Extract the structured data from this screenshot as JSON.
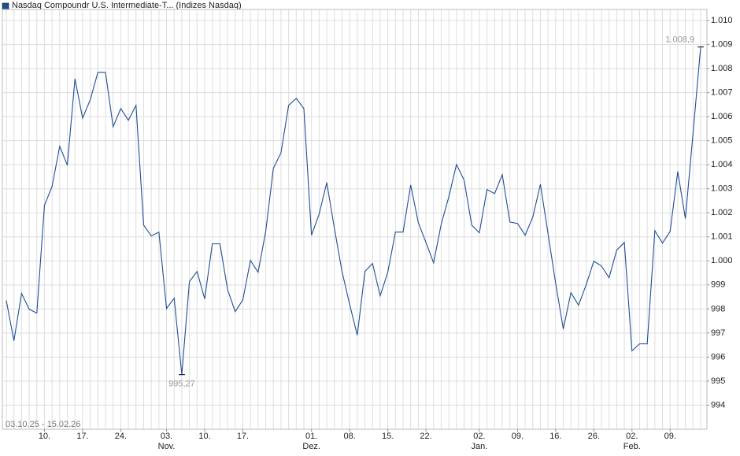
{
  "chart_data": {
    "type": "line",
    "series": [
      {
        "name": "Nasdaq Compoundr U.S. Intermediate-T... (Indizes Nasdaq)",
        "color": "#1f4e96",
        "values": [
          998.35,
          996.68,
          998.65,
          997.99,
          997.83,
          1002.31,
          1003.1,
          1004.77,
          1003.98,
          1007.58,
          1005.94,
          1006.7,
          1007.84,
          1007.84,
          1005.58,
          1006.34,
          1005.85,
          1006.47,
          1001.49,
          1001.04,
          1001.2,
          998.02,
          998.45,
          995.27,
          999.14,
          999.56,
          998.42,
          1000.71,
          1000.71,
          998.81,
          997.89,
          998.38,
          1000.02,
          999.53,
          1001.23,
          1003.85,
          1004.5,
          1006.47,
          1006.76,
          1006.34,
          1001.07,
          1001.95,
          1003.26,
          1001.36,
          999.56,
          998.19,
          996.91,
          999.56,
          999.89,
          998.55,
          999.53,
          1001.2,
          1001.2,
          1003.16,
          1001.59,
          1000.77,
          999.92,
          1001.53,
          1002.67,
          1004.01,
          1003.36,
          1001.49,
          1001.17,
          1002.97,
          1002.8,
          1003.59,
          1001.62,
          1001.56,
          1001.07,
          1001.82,
          1003.19,
          1001.13,
          999.07,
          997.17,
          998.68,
          998.16,
          999.01,
          999.99,
          999.79,
          999.3,
          1000.45,
          1000.77,
          996.26,
          996.55,
          996.55,
          1001.26,
          1000.74,
          1001.23,
          1003.72,
          1001.76,
          1005.29,
          1008.9
        ],
        "value_labels": [
          null,
          null,
          null,
          null,
          null,
          null,
          null,
          null,
          null,
          null,
          null,
          null,
          null,
          null,
          null,
          null,
          null,
          null,
          null,
          null,
          null,
          null,
          null,
          "995,27",
          null,
          null,
          null,
          null,
          null,
          null,
          null,
          null,
          null,
          null,
          null,
          null,
          null,
          null,
          null,
          null,
          null,
          null,
          null,
          null,
          null,
          null,
          null,
          null,
          null,
          null,
          null,
          null,
          null,
          null,
          null,
          null,
          null,
          null,
          null,
          null,
          null,
          null,
          null,
          null,
          null,
          null,
          null,
          null,
          null,
          null,
          null,
          null,
          null,
          null,
          null,
          null,
          null,
          null,
          null,
          null,
          null,
          null,
          null,
          null,
          null,
          null,
          null,
          null,
          null,
          null,
          null,
          "1.008,9"
        ]
      }
    ],
    "categories": [
      null,
      null,
      null,
      null,
      null,
      "10.",
      null,
      null,
      null,
      null,
      "17.",
      null,
      null,
      null,
      null,
      "24.",
      null,
      null,
      null,
      null,
      null,
      "03.",
      null,
      null,
      null,
      null,
      "10.",
      null,
      null,
      null,
      null,
      "17.",
      null,
      null,
      null,
      null,
      null,
      null,
      null,
      null,
      "01.",
      null,
      null,
      null,
      null,
      "08.",
      null,
      null,
      null,
      null,
      "15.",
      null,
      null,
      null,
      null,
      "22.",
      null,
      null,
      null,
      null,
      null,
      null,
      "02.",
      null,
      null,
      null,
      null,
      "09.",
      null,
      null,
      null,
      null,
      "16.",
      null,
      null,
      null,
      null,
      "26.",
      null,
      null,
      null,
      null,
      "02.",
      null,
      null,
      null,
      null,
      "09.",
      null,
      null,
      null,
      null
    ],
    "month_labels": [
      null,
      null,
      null,
      null,
      null,
      null,
      null,
      null,
      null,
      null,
      null,
      null,
      null,
      null,
      null,
      null,
      null,
      null,
      null,
      null,
      null,
      "Nov.",
      null,
      null,
      null,
      null,
      null,
      null,
      null,
      null,
      null,
      null,
      null,
      null,
      null,
      null,
      null,
      null,
      null,
      null,
      "Dez.",
      null,
      null,
      null,
      null,
      null,
      null,
      null,
      null,
      null,
      null,
      null,
      null,
      null,
      null,
      null,
      null,
      null,
      null,
      null,
      null,
      null,
      "Jan.",
      null,
      null,
      null,
      null,
      null,
      null,
      null,
      null,
      null,
      null,
      null,
      null,
      null,
      null,
      null,
      null,
      null,
      null,
      null,
      "Feb.",
      null,
      null,
      null,
      null,
      null,
      null,
      null,
      null,
      null
    ],
    "date_range": "03.10.25 - 15.02.26",
    "ylim": [
      993,
      1010.46
    ],
    "yticks": [
      994,
      995,
      996,
      997,
      998,
      999,
      {
        "value": 1000,
        "label": "1.000"
      },
      {
        "value": 1001,
        "label": "1.001"
      },
      {
        "value": 1002,
        "label": "1.002"
      },
      {
        "value": 1003,
        "label": "1.003"
      },
      {
        "value": 1004,
        "label": "1.004"
      },
      {
        "value": 1005,
        "label": "1.005"
      },
      {
        "value": 1006,
        "label": "1.006"
      },
      {
        "value": 1007,
        "label": "1.007"
      },
      {
        "value": 1008,
        "label": "1.008"
      },
      {
        "value": 1009,
        "label": "1.009"
      },
      {
        "value": 1010,
        "label": "1.010"
      }
    ],
    "grid": true
  }
}
